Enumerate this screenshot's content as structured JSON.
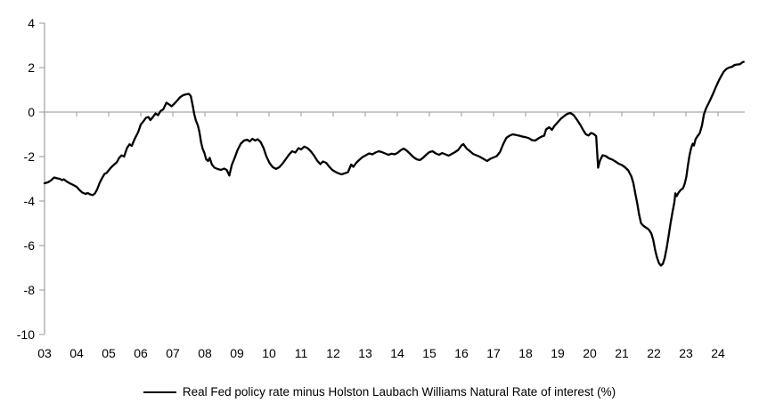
{
  "chart_data": {
    "type": "line",
    "legend": "Real Fed policy rate minus Holston Laubach Williams Natural Rate of interest (%)",
    "line_color": "#000000",
    "axis_color": "#a6a6a6",
    "ylim": [
      -10,
      4
    ],
    "xlim": [
      2003,
      2024.83
    ],
    "grid": false,
    "legend_position": "bottom-center",
    "y_ticks": [
      {
        "label": "4",
        "value": 4
      },
      {
        "label": "2",
        "value": 2
      },
      {
        "label": "0",
        "value": 0
      },
      {
        "label": "-2",
        "value": -2
      },
      {
        "label": "-4",
        "value": -4
      },
      {
        "label": "-6",
        "value": -6
      },
      {
        "label": "-8",
        "value": -8
      },
      {
        "label": "-10",
        "value": -10
      }
    ],
    "x_ticks": [
      {
        "label": "03",
        "year": 2003
      },
      {
        "label": "04",
        "year": 2004
      },
      {
        "label": "05",
        "year": 2005
      },
      {
        "label": "06",
        "year": 2006
      },
      {
        "label": "07",
        "year": 2007
      },
      {
        "label": "08",
        "year": 2008
      },
      {
        "label": "09",
        "year": 2009
      },
      {
        "label": "10",
        "year": 2010
      },
      {
        "label": "11",
        "year": 2011
      },
      {
        "label": "12",
        "year": 2012
      },
      {
        "label": "13",
        "year": 2013
      },
      {
        "label": "14",
        "year": 2014
      },
      {
        "label": "15",
        "year": 2015
      },
      {
        "label": "16",
        "year": 2016
      },
      {
        "label": "17",
        "year": 2017
      },
      {
        "label": "18",
        "year": 2018
      },
      {
        "label": "19",
        "year": 2019
      },
      {
        "label": "20",
        "year": 2020
      },
      {
        "label": "21",
        "year": 2021
      },
      {
        "label": "22",
        "year": 2022
      },
      {
        "label": "23",
        "year": 2023
      },
      {
        "label": "24",
        "year": 2024
      }
    ],
    "series": [
      {
        "name": "Real Fed policy rate minus Holston Laubach Williams Natural Rate of interest (%)",
        "points": [
          [
            2003.0,
            -3.2
          ],
          [
            2003.1,
            -3.16
          ],
          [
            2003.2,
            -3.07
          ],
          [
            2003.3,
            -2.94
          ],
          [
            2003.4,
            -2.98
          ],
          [
            2003.47,
            -3.0
          ],
          [
            2003.55,
            -3.06
          ],
          [
            2003.6,
            -3.02
          ],
          [
            2003.7,
            -3.13
          ],
          [
            2003.8,
            -3.21
          ],
          [
            2003.9,
            -3.28
          ],
          [
            2004.0,
            -3.36
          ],
          [
            2004.1,
            -3.52
          ],
          [
            2004.18,
            -3.62
          ],
          [
            2004.28,
            -3.68
          ],
          [
            2004.35,
            -3.64
          ],
          [
            2004.42,
            -3.7
          ],
          [
            2004.5,
            -3.73
          ],
          [
            2004.57,
            -3.66
          ],
          [
            2004.64,
            -3.48
          ],
          [
            2004.72,
            -3.18
          ],
          [
            2004.8,
            -2.95
          ],
          [
            2004.87,
            -2.78
          ],
          [
            2004.93,
            -2.74
          ],
          [
            2005.0,
            -2.62
          ],
          [
            2005.08,
            -2.48
          ],
          [
            2005.17,
            -2.36
          ],
          [
            2005.25,
            -2.26
          ],
          [
            2005.33,
            -2.05
          ],
          [
            2005.4,
            -1.95
          ],
          [
            2005.48,
            -2.0
          ],
          [
            2005.57,
            -1.62
          ],
          [
            2005.65,
            -1.45
          ],
          [
            2005.72,
            -1.52
          ],
          [
            2005.82,
            -1.18
          ],
          [
            2005.92,
            -0.9
          ],
          [
            2006.0,
            -0.56
          ],
          [
            2006.08,
            -0.42
          ],
          [
            2006.16,
            -0.26
          ],
          [
            2006.24,
            -0.22
          ],
          [
            2006.3,
            -0.36
          ],
          [
            2006.38,
            -0.22
          ],
          [
            2006.46,
            -0.06
          ],
          [
            2006.54,
            -0.14
          ],
          [
            2006.62,
            0.05
          ],
          [
            2006.7,
            0.12
          ],
          [
            2006.8,
            0.42
          ],
          [
            2006.88,
            0.35
          ],
          [
            2006.96,
            0.26
          ],
          [
            2007.05,
            0.38
          ],
          [
            2007.14,
            0.52
          ],
          [
            2007.22,
            0.66
          ],
          [
            2007.32,
            0.76
          ],
          [
            2007.42,
            0.8
          ],
          [
            2007.5,
            0.82
          ],
          [
            2007.56,
            0.72
          ],
          [
            2007.62,
            0.3
          ],
          [
            2007.67,
            -0.1
          ],
          [
            2007.72,
            -0.38
          ],
          [
            2007.78,
            -0.6
          ],
          [
            2007.83,
            -0.9
          ],
          [
            2007.88,
            -1.35
          ],
          [
            2007.93,
            -1.65
          ],
          [
            2007.98,
            -1.82
          ],
          [
            2008.04,
            -2.12
          ],
          [
            2008.1,
            -2.2
          ],
          [
            2008.15,
            -2.06
          ],
          [
            2008.22,
            -2.36
          ],
          [
            2008.3,
            -2.5
          ],
          [
            2008.4,
            -2.56
          ],
          [
            2008.5,
            -2.6
          ],
          [
            2008.6,
            -2.54
          ],
          [
            2008.68,
            -2.6
          ],
          [
            2008.76,
            -2.85
          ],
          [
            2008.84,
            -2.38
          ],
          [
            2008.93,
            -2.05
          ],
          [
            2009.02,
            -1.7
          ],
          [
            2009.12,
            -1.42
          ],
          [
            2009.22,
            -1.28
          ],
          [
            2009.32,
            -1.24
          ],
          [
            2009.4,
            -1.32
          ],
          [
            2009.48,
            -1.2
          ],
          [
            2009.57,
            -1.28
          ],
          [
            2009.65,
            -1.22
          ],
          [
            2009.74,
            -1.35
          ],
          [
            2009.83,
            -1.62
          ],
          [
            2009.92,
            -2.0
          ],
          [
            2010.02,
            -2.3
          ],
          [
            2010.12,
            -2.48
          ],
          [
            2010.22,
            -2.55
          ],
          [
            2010.32,
            -2.48
          ],
          [
            2010.42,
            -2.32
          ],
          [
            2010.52,
            -2.12
          ],
          [
            2010.62,
            -1.92
          ],
          [
            2010.72,
            -1.76
          ],
          [
            2010.82,
            -1.82
          ],
          [
            2010.92,
            -1.62
          ],
          [
            2011.0,
            -1.68
          ],
          [
            2011.1,
            -1.55
          ],
          [
            2011.2,
            -1.62
          ],
          [
            2011.3,
            -1.76
          ],
          [
            2011.4,
            -1.95
          ],
          [
            2011.5,
            -2.18
          ],
          [
            2011.6,
            -2.34
          ],
          [
            2011.68,
            -2.22
          ],
          [
            2011.78,
            -2.28
          ],
          [
            2011.88,
            -2.46
          ],
          [
            2011.97,
            -2.6
          ],
          [
            2012.06,
            -2.68
          ],
          [
            2012.16,
            -2.75
          ],
          [
            2012.26,
            -2.8
          ],
          [
            2012.36,
            -2.75
          ],
          [
            2012.46,
            -2.7
          ],
          [
            2012.56,
            -2.36
          ],
          [
            2012.63,
            -2.46
          ],
          [
            2012.72,
            -2.28
          ],
          [
            2012.82,
            -2.14
          ],
          [
            2012.92,
            -2.02
          ],
          [
            2013.02,
            -1.94
          ],
          [
            2013.12,
            -1.86
          ],
          [
            2013.22,
            -1.9
          ],
          [
            2013.32,
            -1.82
          ],
          [
            2013.42,
            -1.76
          ],
          [
            2013.52,
            -1.8
          ],
          [
            2013.62,
            -1.86
          ],
          [
            2013.72,
            -1.92
          ],
          [
            2013.82,
            -1.87
          ],
          [
            2013.92,
            -1.9
          ],
          [
            2014.02,
            -1.82
          ],
          [
            2014.12,
            -1.7
          ],
          [
            2014.2,
            -1.64
          ],
          [
            2014.3,
            -1.74
          ],
          [
            2014.4,
            -1.88
          ],
          [
            2014.5,
            -2.02
          ],
          [
            2014.6,
            -2.12
          ],
          [
            2014.7,
            -2.16
          ],
          [
            2014.8,
            -2.06
          ],
          [
            2014.9,
            -1.92
          ],
          [
            2015.0,
            -1.8
          ],
          [
            2015.1,
            -1.76
          ],
          [
            2015.2,
            -1.86
          ],
          [
            2015.3,
            -1.92
          ],
          [
            2015.4,
            -1.84
          ],
          [
            2015.5,
            -1.9
          ],
          [
            2015.6,
            -1.96
          ],
          [
            2015.7,
            -1.88
          ],
          [
            2015.8,
            -1.8
          ],
          [
            2015.9,
            -1.7
          ],
          [
            2016.0,
            -1.5
          ],
          [
            2016.06,
            -1.44
          ],
          [
            2016.16,
            -1.64
          ],
          [
            2016.26,
            -1.75
          ],
          [
            2016.36,
            -1.88
          ],
          [
            2016.46,
            -1.94
          ],
          [
            2016.56,
            -2.0
          ],
          [
            2016.68,
            -2.1
          ],
          [
            2016.8,
            -2.2
          ],
          [
            2016.9,
            -2.1
          ],
          [
            2017.0,
            -2.04
          ],
          [
            2017.1,
            -1.98
          ],
          [
            2017.2,
            -1.8
          ],
          [
            2017.3,
            -1.45
          ],
          [
            2017.4,
            -1.16
          ],
          [
            2017.5,
            -1.06
          ],
          [
            2017.6,
            -1.0
          ],
          [
            2017.7,
            -1.03
          ],
          [
            2017.8,
            -1.06
          ],
          [
            2017.9,
            -1.1
          ],
          [
            2018.0,
            -1.13
          ],
          [
            2018.1,
            -1.17
          ],
          [
            2018.2,
            -1.26
          ],
          [
            2018.3,
            -1.28
          ],
          [
            2018.4,
            -1.18
          ],
          [
            2018.5,
            -1.1
          ],
          [
            2018.58,
            -1.06
          ],
          [
            2018.64,
            -0.78
          ],
          [
            2018.74,
            -0.68
          ],
          [
            2018.82,
            -0.8
          ],
          [
            2018.9,
            -0.62
          ],
          [
            2019.0,
            -0.46
          ],
          [
            2019.1,
            -0.3
          ],
          [
            2019.2,
            -0.18
          ],
          [
            2019.3,
            -0.08
          ],
          [
            2019.4,
            -0.04
          ],
          [
            2019.5,
            -0.14
          ],
          [
            2019.6,
            -0.34
          ],
          [
            2019.7,
            -0.56
          ],
          [
            2019.8,
            -0.82
          ],
          [
            2019.88,
            -1.0
          ],
          [
            2019.96,
            -1.05
          ],
          [
            2020.04,
            -0.94
          ],
          [
            2020.12,
            -0.98
          ],
          [
            2020.2,
            -1.08
          ],
          [
            2020.26,
            -2.5
          ],
          [
            2020.32,
            -2.18
          ],
          [
            2020.4,
            -1.94
          ],
          [
            2020.5,
            -1.98
          ],
          [
            2020.6,
            -2.08
          ],
          [
            2020.7,
            -2.13
          ],
          [
            2020.8,
            -2.22
          ],
          [
            2020.9,
            -2.32
          ],
          [
            2021.0,
            -2.38
          ],
          [
            2021.1,
            -2.48
          ],
          [
            2021.2,
            -2.62
          ],
          [
            2021.3,
            -2.9
          ],
          [
            2021.36,
            -3.2
          ],
          [
            2021.42,
            -3.65
          ],
          [
            2021.48,
            -4.1
          ],
          [
            2021.54,
            -4.6
          ],
          [
            2021.6,
            -5.0
          ],
          [
            2021.68,
            -5.12
          ],
          [
            2021.76,
            -5.2
          ],
          [
            2021.84,
            -5.28
          ],
          [
            2021.92,
            -5.45
          ],
          [
            2021.98,
            -5.75
          ],
          [
            2022.04,
            -6.2
          ],
          [
            2022.1,
            -6.55
          ],
          [
            2022.16,
            -6.8
          ],
          [
            2022.22,
            -6.9
          ],
          [
            2022.28,
            -6.82
          ],
          [
            2022.34,
            -6.55
          ],
          [
            2022.4,
            -6.1
          ],
          [
            2022.46,
            -5.55
          ],
          [
            2022.52,
            -5.0
          ],
          [
            2022.58,
            -4.5
          ],
          [
            2022.64,
            -4.05
          ],
          [
            2022.67,
            -3.65
          ],
          [
            2022.71,
            -3.78
          ],
          [
            2022.77,
            -3.62
          ],
          [
            2022.84,
            -3.5
          ],
          [
            2022.91,
            -3.42
          ],
          [
            2022.96,
            -3.22
          ],
          [
            2023.01,
            -2.92
          ],
          [
            2023.06,
            -2.4
          ],
          [
            2023.11,
            -1.95
          ],
          [
            2023.16,
            -1.62
          ],
          [
            2023.21,
            -1.42
          ],
          [
            2023.25,
            -1.5
          ],
          [
            2023.3,
            -1.22
          ],
          [
            2023.36,
            -1.08
          ],
          [
            2023.43,
            -0.95
          ],
          [
            2023.5,
            -0.6
          ],
          [
            2023.56,
            -0.1
          ],
          [
            2023.63,
            0.18
          ],
          [
            2023.7,
            0.38
          ],
          [
            2023.78,
            0.62
          ],
          [
            2023.86,
            0.88
          ],
          [
            2023.94,
            1.15
          ],
          [
            2024.02,
            1.4
          ],
          [
            2024.1,
            1.62
          ],
          [
            2024.18,
            1.82
          ],
          [
            2024.26,
            1.94
          ],
          [
            2024.34,
            2.0
          ],
          [
            2024.44,
            2.04
          ],
          [
            2024.52,
            2.12
          ],
          [
            2024.6,
            2.14
          ],
          [
            2024.68,
            2.15
          ],
          [
            2024.76,
            2.24
          ],
          [
            2024.8,
            2.26
          ]
        ]
      }
    ]
  }
}
